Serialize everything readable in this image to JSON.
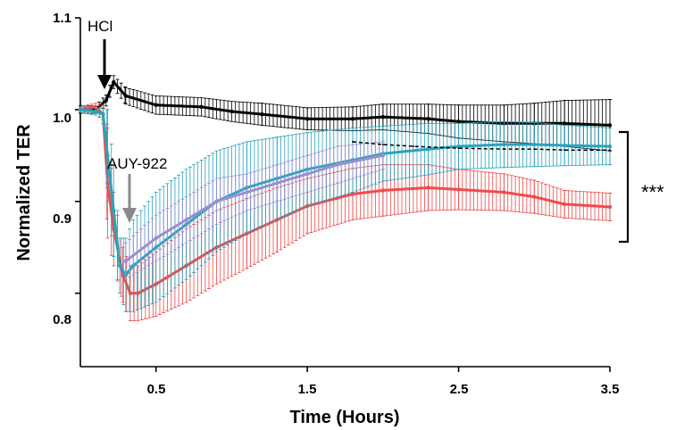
{
  "chart_data": {
    "type": "line",
    "xlabel": "Time (Hours)",
    "ylabel": "Normalized TER",
    "xlim": [
      0,
      3.5
    ],
    "ylim": [
      0.72,
      1.1
    ],
    "x_ticks": [
      "0.5",
      "1.5",
      "2.5",
      "3.5"
    ],
    "y_ticks": [
      "0.8",
      "0.9",
      "1.0",
      "1.1"
    ],
    "grid": false,
    "annotations": {
      "hcl_label": "HCl",
      "hcl_time": 0.17,
      "auy_label": "AUY-922",
      "auy_time": 0.33,
      "significance": "***"
    },
    "series": [
      {
        "color": "#000000",
        "x": [
          0,
          0.1,
          0.17,
          0.22,
          0.3,
          0.5,
          0.8,
          1.0,
          1.2,
          1.5,
          1.8,
          2.0,
          2.3,
          2.5,
          2.8,
          3.0,
          3.2,
          3.5
        ],
        "y": [
          1.0,
          1.0,
          1.01,
          1.03,
          1.015,
          1.005,
          1.003,
          0.998,
          0.995,
          0.99,
          0.99,
          0.992,
          0.99,
          0.987,
          0.985,
          0.985,
          0.985,
          0.983
        ],
        "err": [
          0.004,
          0.004,
          0.006,
          0.007,
          0.009,
          0.01,
          0.01,
          0.011,
          0.012,
          0.012,
          0.013,
          0.014,
          0.016,
          0.018,
          0.02,
          0.022,
          0.025,
          0.028
        ]
      },
      {
        "color": "#ef4b4b",
        "x": [
          0,
          0.1,
          0.15,
          0.18,
          0.22,
          0.28,
          0.33,
          0.38,
          0.5,
          0.7,
          0.9,
          1.1,
          1.3,
          1.5,
          1.8,
          2.0,
          2.3,
          2.5,
          2.8,
          3.0,
          3.2,
          3.5
        ],
        "y": [
          1.0,
          1.003,
          0.995,
          0.92,
          0.87,
          0.82,
          0.8,
          0.8,
          0.81,
          0.83,
          0.85,
          0.865,
          0.88,
          0.895,
          0.908,
          0.912,
          0.915,
          0.913,
          0.91,
          0.905,
          0.897,
          0.894
        ],
        "err": [
          0.003,
          0.004,
          0.01,
          0.06,
          0.04,
          0.03,
          0.03,
          0.03,
          0.035,
          0.04,
          0.04,
          0.038,
          0.035,
          0.03,
          0.028,
          0.028,
          0.025,
          0.022,
          0.02,
          0.018,
          0.015,
          0.015
        ]
      },
      {
        "color": "#2aa3bd",
        "x": [
          0,
          0.1,
          0.15,
          0.18,
          0.22,
          0.26,
          0.3,
          0.35,
          0.5,
          0.7,
          0.9,
          1.1,
          1.3,
          1.5,
          1.8,
          2.0,
          2.3,
          2.5,
          2.8,
          3.0,
          3.2,
          3.5
        ],
        "y": [
          1.0,
          0.998,
          0.995,
          0.95,
          0.89,
          0.83,
          0.82,
          0.83,
          0.85,
          0.875,
          0.9,
          0.915,
          0.925,
          0.935,
          0.945,
          0.952,
          0.957,
          0.96,
          0.962,
          0.962,
          0.961,
          0.96
        ],
        "err": [
          0.003,
          0.004,
          0.006,
          0.05,
          0.05,
          0.03,
          0.04,
          0.05,
          0.06,
          0.06,
          0.055,
          0.05,
          0.045,
          0.04,
          0.035,
          0.03,
          0.028,
          0.025,
          0.025,
          0.024,
          0.022,
          0.02
        ]
      },
      {
        "color": "#9b8fcf",
        "x": [
          0.3,
          0.5,
          0.7,
          0.9,
          1.1,
          1.3,
          1.5,
          1.7,
          2.0
        ],
        "y": [
          0.835,
          0.86,
          0.88,
          0.9,
          0.91,
          0.92,
          0.93,
          0.94,
          0.95
        ],
        "err": [
          0.02,
          0.025,
          0.025,
          0.025,
          0.02,
          0.02,
          0.02,
          0.02,
          0.015
        ]
      },
      {
        "color": "#000000",
        "dashed": true,
        "x": [
          1.8,
          2.0,
          2.2,
          2.5,
          2.8,
          3.0,
          3.2,
          3.5
        ],
        "y": [
          0.965,
          0.962,
          0.96,
          0.958,
          0.957,
          0.957,
          0.956,
          0.956
        ],
        "err": []
      }
    ]
  }
}
